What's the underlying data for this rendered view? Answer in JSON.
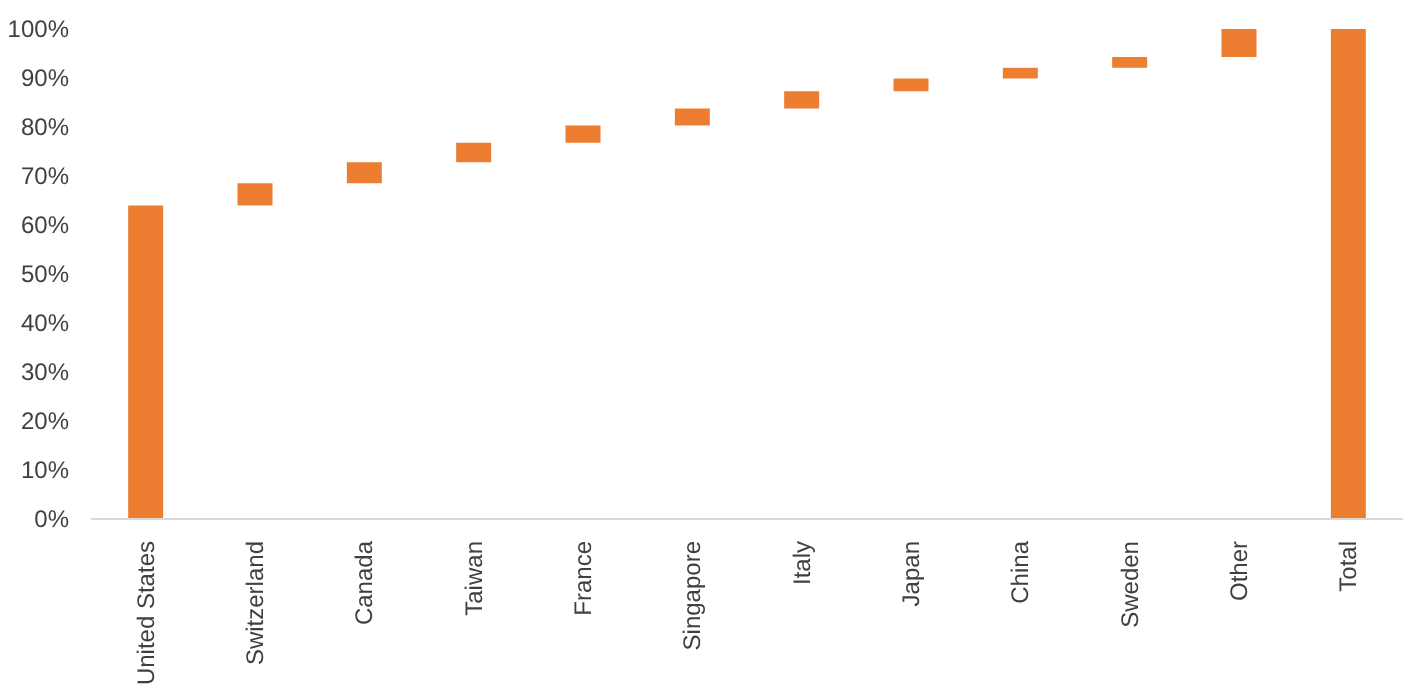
{
  "chart_data": {
    "type": "bar",
    "categories": [
      "United States",
      "Switzerland",
      "Canada",
      "Taiwan",
      "France",
      "Singapore",
      "Italy",
      "Japan",
      "China",
      "Sweden",
      "Other",
      "Total"
    ],
    "values": [
      64,
      4.5,
      4.3,
      4.0,
      3.5,
      3.5,
      3.5,
      2.6,
      2.2,
      2.2,
      5.7,
      100
    ],
    "base": [
      0,
      64,
      68.5,
      72.8,
      76.8,
      80.3,
      83.8,
      87.3,
      89.9,
      92.1,
      94.3,
      0
    ],
    "color": "#ed7d31",
    "ylim": [
      0,
      100
    ],
    "yticks": [
      {
        "value": 0,
        "label": "0%"
      },
      {
        "value": 10,
        "label": "10%"
      },
      {
        "value": 20,
        "label": "20%"
      },
      {
        "value": 30,
        "label": "30%"
      },
      {
        "value": 40,
        "label": "40%"
      },
      {
        "value": 50,
        "label": "50%"
      },
      {
        "value": 60,
        "label": "60%"
      },
      {
        "value": 70,
        "label": "70%"
      },
      {
        "value": 80,
        "label": "80%"
      },
      {
        "value": 90,
        "label": "90%"
      },
      {
        "value": 100,
        "label": "100%"
      }
    ],
    "grid": false
  }
}
